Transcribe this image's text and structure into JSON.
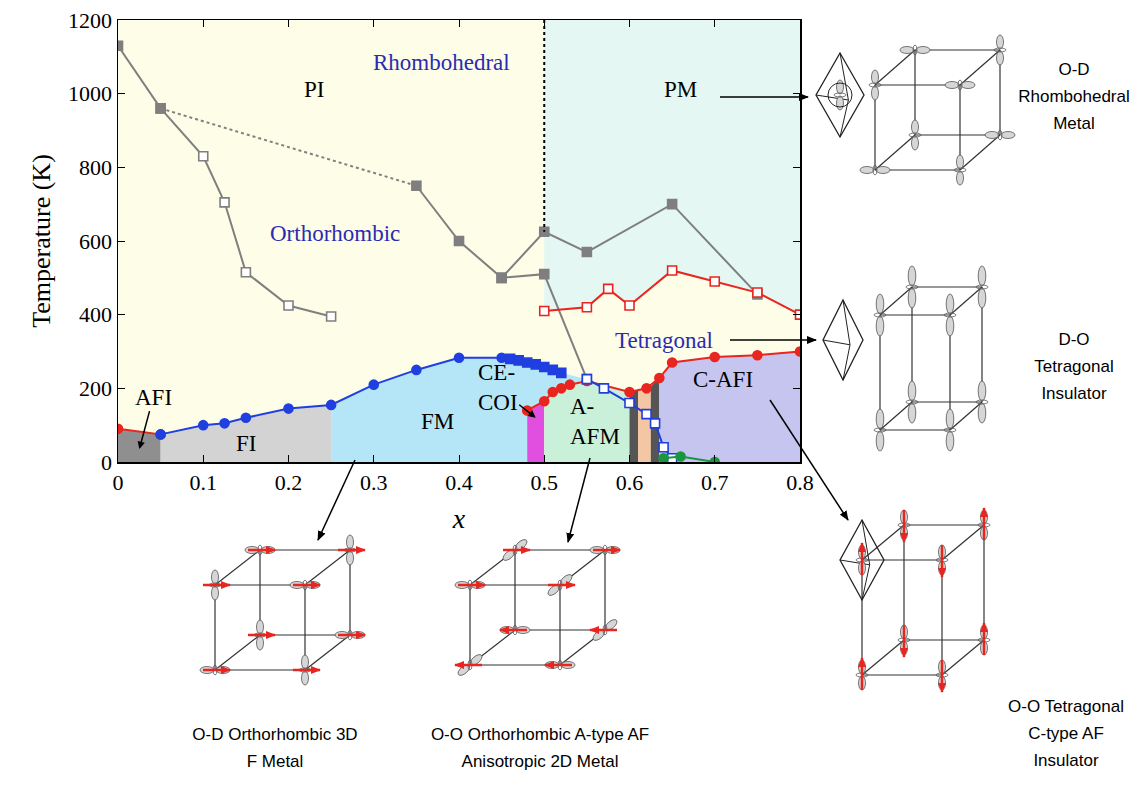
{
  "chart_data": {
    "type": "line",
    "x_label": "x",
    "y_label": "Temperature (K)",
    "xlim": [
      0,
      0.8
    ],
    "xticks": [
      0,
      0.1,
      0.2,
      0.3,
      0.4,
      0.5,
      0.6,
      0.7,
      0.8
    ],
    "ylim": [
      0,
      1200
    ],
    "yticks": [
      0,
      200,
      400,
      600,
      800,
      1000,
      1200
    ],
    "grid": false,
    "regions": [
      {
        "color": "#fdfde8",
        "x": [
          0,
          0.8,
          0.8,
          0
        ],
        "y": [
          0,
          0,
          1200,
          1200
        ]
      },
      {
        "color": "#e4f7f2",
        "x": [
          0.5,
          0.8,
          0.8,
          0.75,
          0.7,
          0.65,
          0.6,
          0.575,
          0.55,
          0.5
        ],
        "y": [
          1200,
          1200,
          400,
          460,
          490,
          520,
          425,
          470,
          420,
          410
        ]
      },
      {
        "color": "#8f8f8f",
        "x": [
          0,
          0.05,
          0.05,
          0
        ],
        "y": [
          0,
          0,
          75,
          90
        ]
      },
      {
        "color": "#d3d3d3",
        "x": [
          0.05,
          0.1,
          0.125,
          0.15,
          0.2,
          0.25,
          0.25,
          0.05
        ],
        "y": [
          75,
          100,
          105,
          120,
          145,
          155,
          0,
          0
        ]
      },
      {
        "color": "#b5e6f7",
        "x": [
          0.25,
          0.3,
          0.35,
          0.4,
          0.45,
          0.46,
          0.47,
          0.48,
          0.49,
          0.5,
          0.51,
          0.52,
          0.55,
          0.53,
          0.52,
          0.51,
          0.5,
          0.48,
          0.48,
          0.25
        ],
        "y": [
          155,
          210,
          250,
          283,
          283,
          280,
          276,
          270,
          265,
          258,
          250,
          242,
          225,
          210,
          200,
          190,
          165,
          140,
          0,
          0
        ]
      },
      {
        "color": "#e04fe0",
        "x": [
          0.48,
          0.5,
          0.5,
          0.48
        ],
        "y": [
          0,
          0,
          165,
          140
        ]
      },
      {
        "color": "#c9f0d8",
        "x": [
          0.5,
          0.51,
          0.52,
          0.53,
          0.55,
          0.6,
          0.6,
          0.5
        ],
        "y": [
          165,
          190,
          200,
          210,
          220,
          190,
          0,
          0
        ]
      },
      {
        "color": "#555555",
        "x": [
          0.6,
          0.61,
          0.61,
          0.6
        ],
        "y": [
          0,
          0,
          195,
          190
        ]
      },
      {
        "color": "#f4c6a4",
        "x": [
          0.61,
          0.625,
          0.625,
          0.61
        ],
        "y": [
          0,
          0,
          205,
          195
        ]
      },
      {
        "color": "#555555",
        "x": [
          0.625,
          0.635,
          0.635,
          0.625
        ],
        "y": [
          0,
          0,
          228,
          205
        ]
      },
      {
        "color": "#c5c5f0",
        "x": [
          0.635,
          0.65,
          0.7,
          0.75,
          0.8,
          0.8,
          0.635
        ],
        "y": [
          228,
          270,
          285,
          290,
          300,
          0,
          0
        ]
      }
    ],
    "series": [
      {
        "color": "#7f7f7f",
        "marker": "square-open",
        "line_style": "solid",
        "x": [
          0.05,
          0.1,
          0.125,
          0.15,
          0.2,
          0.25
        ],
        "y": [
          960,
          830,
          705,
          515,
          425,
          395
        ]
      },
      {
        "color": "#7f7f7f",
        "marker": "none",
        "line_style": "dotted",
        "x": [
          0.05,
          0.35
        ],
        "y": [
          960,
          750
        ]
      },
      {
        "color": "#7f7f7f",
        "marker": "square",
        "line_style": "solid",
        "x": [
          0,
          0.05
        ],
        "y": [
          1130,
          960
        ]
      },
      {
        "color": "#7f7f7f",
        "marker": "square",
        "line_style": "solid",
        "x": [
          0.35,
          0.4,
          0.45,
          0.5,
          0.55,
          0.65,
          0.75
        ],
        "y": [
          750,
          600,
          500,
          625,
          570,
          700,
          455
        ]
      },
      {
        "color": "#7f7f7f",
        "marker": "square",
        "line_style": "solid",
        "x": [
          0.45,
          0.5,
          0.55
        ],
        "y": [
          500,
          510,
          225
        ]
      },
      {
        "color": "#000000",
        "marker": "none",
        "line_style": "dotted",
        "x": [
          0.5,
          0.5
        ],
        "y": [
          1200,
          625
        ]
      },
      {
        "color": "#e8251e",
        "marker": "square-open",
        "line_style": "solid",
        "x": [
          0.5,
          0.55,
          0.575,
          0.6,
          0.65,
          0.7,
          0.75,
          0.8
        ],
        "y": [
          410,
          420,
          470,
          425,
          520,
          490,
          460,
          400
        ]
      },
      {
        "color": "#e8251e",
        "marker": "circle",
        "line_style": "solid",
        "x": [
          0,
          0.05
        ],
        "y": [
          90,
          75
        ]
      },
      {
        "color": "#e8251e",
        "marker": "circle",
        "line_style": "solid",
        "x": [
          0.48,
          0.5,
          0.51,
          0.52,
          0.53,
          0.55,
          0.6,
          0.62,
          0.635,
          0.65,
          0.7,
          0.75,
          0.8
        ],
        "y": [
          140,
          165,
          190,
          200,
          210,
          220,
          190,
          200,
          228,
          270,
          285,
          290,
          300
        ]
      },
      {
        "color": "#1f3fe0",
        "marker": "circle",
        "line_style": "solid",
        "x": [
          0.05,
          0.1,
          0.125,
          0.15,
          0.2,
          0.25,
          0.3,
          0.35,
          0.4,
          0.45
        ],
        "y": [
          75,
          100,
          105,
          120,
          145,
          155,
          210,
          250,
          283,
          283
        ]
      },
      {
        "color": "#1f3fe0",
        "marker": "square",
        "line_style": "solid",
        "x": [
          0.46,
          0.47,
          0.48,
          0.49,
          0.5,
          0.51,
          0.52
        ],
        "y": [
          280,
          276,
          270,
          265,
          258,
          250,
          242
        ]
      },
      {
        "color": "#1f3fe0",
        "marker": "square-open",
        "line_style": "solid",
        "x": [
          0.55,
          0.57,
          0.6,
          0.62,
          0.63,
          0.64,
          0.65
        ],
        "y": [
          225,
          200,
          160,
          130,
          105,
          40,
          10
        ]
      },
      {
        "color": "#1a9641",
        "marker": "circle",
        "line_style": "solid",
        "x": [
          0.64,
          0.66,
          0.7
        ],
        "y": [
          10,
          15,
          0
        ]
      }
    ],
    "annotations": [
      {
        "text": "PI",
        "x": 0.23,
        "y": 1010
      },
      {
        "text": "PM",
        "x": 0.66,
        "y": 1010
      },
      {
        "text": "Rhombohedral",
        "x": 0.38,
        "y": 1085,
        "color": "#2b2bb0"
      },
      {
        "text": "Orthorhombic",
        "x": 0.255,
        "y": 620,
        "color": "#2b2bb0"
      },
      {
        "text": "Tetragonal",
        "x": 0.64,
        "y": 330,
        "color": "#2b2bb0"
      },
      {
        "text": "AFI",
        "x": 0.025,
        "y": 35
      },
      {
        "text": "FI",
        "x": 0.15,
        "y": 50
      },
      {
        "text": "FM",
        "x": 0.375,
        "y": 110
      },
      {
        "text": "CE-\nCOI",
        "x": 0.49,
        "y": 120
      },
      {
        "text": "A-\nAFM",
        "x": 0.56,
        "y": 110
      },
      {
        "text": "C-AFI",
        "x": 0.71,
        "y": 225
      }
    ]
  },
  "schematic_labels": [
    [
      "O-D",
      "Rhombohedral",
      "Metal"
    ],
    [
      "D-O",
      "Tetragonal",
      "Insulator"
    ],
    [
      "O-O Tetragonal",
      "C-type AF",
      "Insulator"
    ],
    [
      "O-D Orthorhombic 3D",
      "F Metal"
    ],
    [
      "O-O Orthorhombic A-type AF",
      "Anisotropic 2D Metal"
    ]
  ]
}
